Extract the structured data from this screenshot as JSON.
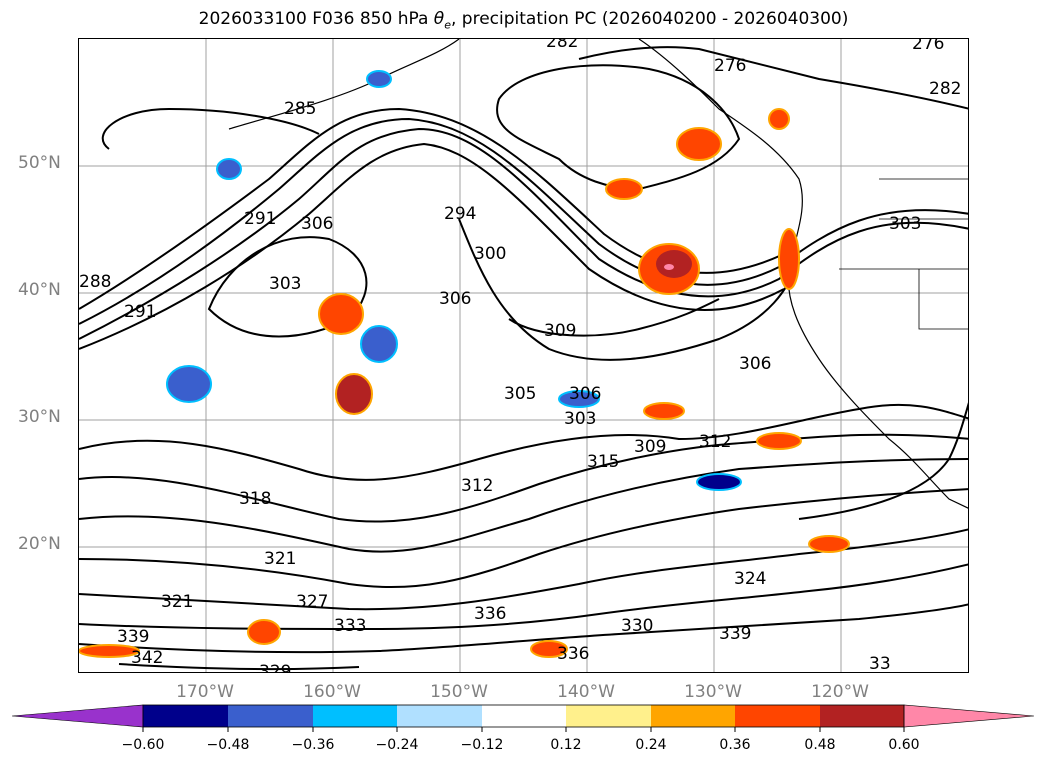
{
  "title": {
    "prefix": "2026033100 F036 850 hPa ",
    "theta": "θ",
    "theta_sub": "e",
    "suffix": ", precipitation PC (2026040200 - 2026040300)"
  },
  "map": {
    "latitude_labels": [
      "50°N",
      "40°N",
      "30°N",
      "20°N"
    ],
    "longitude_labels": [
      "170°W",
      "160°W",
      "150°W",
      "140°W",
      "130°W",
      "120°W"
    ],
    "contour_labels": [
      "285",
      "291",
      "306",
      "294",
      "300",
      "303",
      "306",
      "309",
      "276",
      "282",
      "303",
      "306",
      "305",
      "306",
      "303",
      "309",
      "312",
      "315",
      "312",
      "318",
      "321",
      "327",
      "321",
      "333",
      "336",
      "339",
      "342",
      "330",
      "336",
      "324",
      "339",
      "288",
      "291",
      "282",
      "276",
      "33",
      "329"
    ],
    "precip_patches": [
      {
        "lon": -133.0,
        "lat": 43.5,
        "value": 0.48
      },
      {
        "lon": -132.0,
        "lat": 42.0,
        "value": 0.6
      },
      {
        "lon": -158.0,
        "lat": 38.5,
        "value": 0.36
      },
      {
        "lon": -157.0,
        "lat": 32.5,
        "value": 0.48
      },
      {
        "lon": -153.5,
        "lat": 37.0,
        "value": -0.48
      },
      {
        "lon": -168.5,
        "lat": 32.5,
        "value": -0.36
      },
      {
        "lon": -130.0,
        "lat": 24.5,
        "value": -0.6
      },
      {
        "lon": -133.5,
        "lat": 50.5,
        "value": 0.36
      },
      {
        "lon": -127.5,
        "lat": 42.5,
        "value": 0.36
      },
      {
        "lon": -127.0,
        "lat": 30.5,
        "value": 0.48
      },
      {
        "lon": -122.5,
        "lat": 20.5,
        "value": 0.48
      },
      {
        "lon": -164.0,
        "lat": 16.0,
        "value": 0.36
      },
      {
        "lon": -175.5,
        "lat": 14.0,
        "value": 0.48
      },
      {
        "lon": -142.5,
        "lat": 14.5,
        "value": 0.36
      },
      {
        "lon": -155.0,
        "lat": 56.0,
        "value": -0.36
      },
      {
        "lon": -170.5,
        "lat": 50.0,
        "value": -0.36
      },
      {
        "lon": -140.0,
        "lat": 30.5,
        "value": -0.36
      },
      {
        "lon": -126.5,
        "lat": 57.5,
        "value": 0.36
      },
      {
        "lon": -123.5,
        "lat": 29.0,
        "value": 0.36
      }
    ]
  },
  "colorbar": {
    "tick_labels": [
      "−0.60",
      "−0.48",
      "−0.36",
      "−0.24",
      "−0.12",
      "0.12",
      "0.24",
      "0.36",
      "0.48",
      "0.60"
    ],
    "colors": [
      "#9932cc",
      "#00008b",
      "#3a5fcd",
      "#00bfff",
      "#b0e0ff",
      "#ffffff",
      "#fff08c",
      "#ffa500",
      "#ff4500",
      "#b22222",
      "#ff87a8"
    ]
  }
}
